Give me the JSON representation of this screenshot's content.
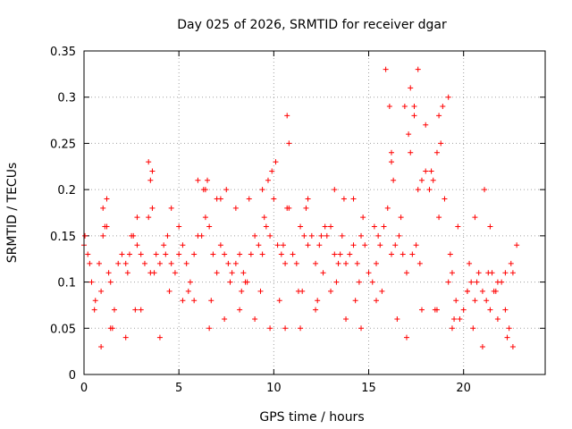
{
  "chart_data": {
    "type": "scatter",
    "title": "Day 025 of 2026, SRMTID for receiver dgar",
    "xlabel": "GPS time / hours",
    "ylabel": "SRMTID / TECUs",
    "xlim": [
      0,
      24.3
    ],
    "ylim": [
      0,
      0.35
    ],
    "x_ticks": [
      0,
      5,
      10,
      15,
      20
    ],
    "x_tick_labels": [
      "0",
      "5",
      "10",
      "15",
      "20"
    ],
    "y_ticks": [
      0,
      0.05,
      0.1,
      0.15,
      0.2,
      0.25,
      0.3,
      0.35
    ],
    "y_tick_labels": [
      "0",
      "0.05",
      "0.1",
      "0.15",
      "0.2",
      "0.25",
      "0.3",
      "0.35"
    ],
    "grid": true,
    "legend": "none",
    "marker": "+",
    "series": [
      {
        "name": "SRMTID",
        "color": "#ff0000",
        "x": [
          0.0,
          0.2,
          0.4,
          0.6,
          0.8,
          1.0,
          1.2,
          1.4,
          1.6,
          1.8,
          2.0,
          2.2,
          2.4,
          2.6,
          2.8,
          3.0,
          3.2,
          3.4,
          3.6,
          3.8,
          4.0,
          4.2,
          4.4,
          4.6,
          4.8,
          5.0,
          5.2,
          5.4,
          5.6,
          5.8,
          6.0,
          6.2,
          6.4,
          6.6,
          6.8,
          7.0,
          7.2,
          7.4,
          7.6,
          7.8,
          8.0,
          8.2,
          8.4,
          8.6,
          8.8,
          9.0,
          9.2,
          9.4,
          9.6,
          9.8,
          10.0,
          10.2,
          10.4,
          10.6,
          10.8,
          11.0,
          11.2,
          11.4,
          11.6,
          11.8,
          12.0,
          12.2,
          12.4,
          12.6,
          12.8,
          13.0,
          13.2,
          13.4,
          13.6,
          13.8,
          14.0,
          14.2,
          14.4,
          14.6,
          14.8,
          15.0,
          15.2,
          15.4,
          15.6,
          15.8,
          16.0,
          16.2,
          16.4,
          16.6,
          16.8,
          17.0,
          17.2,
          17.4,
          17.6,
          17.8,
          18.0,
          18.2,
          18.4,
          18.6,
          18.8,
          19.0,
          19.2,
          19.4,
          19.6,
          19.8,
          20.0,
          20.2,
          20.4,
          20.6,
          20.8,
          21.0,
          21.2,
          21.4,
          21.6,
          21.8,
          22.0,
          22.2,
          22.4,
          22.6,
          22.8,
          0.05,
          0.3,
          0.55,
          0.9,
          1.1,
          1.3,
          1.5,
          2.3,
          2.7,
          3.5,
          3.7,
          4.3,
          4.5,
          5.5,
          6.3,
          6.7,
          7.2,
          7.7,
          8.3,
          8.7,
          9.3,
          9.7,
          10.3,
          10.7,
          11.3,
          11.7,
          12.3,
          12.7,
          13.3,
          13.7,
          14.3,
          14.7,
          15.3,
          15.7,
          16.3,
          16.7,
          17.3,
          17.7,
          18.3,
          18.7,
          19.3,
          19.7,
          20.3,
          20.7,
          21.3,
          21.7,
          22.3,
          1.0,
          2.5,
          3.5,
          5.0,
          6.5,
          7.5,
          8.5,
          9.5,
          10.5,
          11.5,
          12.5,
          13.5,
          14.5,
          15.5,
          16.5,
          17.5,
          18.5,
          19.5,
          20.5,
          21.5,
          22.5,
          3.4,
          3.6,
          6.0,
          6.4,
          9.9,
          10.1,
          10.7,
          10.8,
          15.9,
          16.2,
          16.9,
          17.1,
          17.4,
          17.6,
          18.7,
          18.9,
          21.1,
          0.9,
          1.4,
          2.2,
          3.0,
          4.0,
          5.2,
          5.8,
          6.6,
          7.4,
          8.2,
          9.0,
          9.8,
          10.6,
          11.4,
          12.2,
          13.0,
          13.8,
          14.6,
          15.4,
          16.2,
          17.0,
          17.8,
          18.6,
          19.4,
          20.2,
          21.0,
          21.8,
          22.6,
          1.2,
          2.8,
          4.6,
          7.0,
          8.0,
          9.4,
          11.8,
          13.2,
          14.2,
          16.1,
          17.2,
          18.0,
          19.2,
          20.6,
          21.4,
          22.2
        ],
        "y": [
          0.14,
          0.13,
          0.1,
          0.08,
          0.12,
          0.15,
          0.16,
          0.1,
          0.07,
          0.12,
          0.13,
          0.12,
          0.13,
          0.15,
          0.14,
          0.13,
          0.12,
          0.17,
          0.18,
          0.13,
          0.12,
          0.14,
          0.15,
          0.12,
          0.11,
          0.13,
          0.14,
          0.12,
          0.1,
          0.13,
          0.15,
          0.15,
          0.17,
          0.16,
          0.13,
          0.11,
          0.14,
          0.13,
          0.12,
          0.11,
          0.12,
          0.13,
          0.11,
          0.1,
          0.13,
          0.15,
          0.14,
          0.13,
          0.16,
          0.15,
          0.19,
          0.14,
          0.13,
          0.12,
          0.18,
          0.13,
          0.12,
          0.16,
          0.15,
          0.14,
          0.15,
          0.12,
          0.14,
          0.11,
          0.15,
          0.16,
          0.13,
          0.12,
          0.15,
          0.12,
          0.13,
          0.14,
          0.12,
          0.15,
          0.14,
          0.11,
          0.1,
          0.12,
          0.14,
          0.16,
          0.18,
          0.24,
          0.14,
          0.15,
          0.13,
          0.11,
          0.24,
          0.29,
          0.2,
          0.21,
          0.22,
          0.2,
          0.21,
          0.24,
          0.25,
          0.19,
          0.1,
          0.11,
          0.08,
          0.06,
          0.07,
          0.09,
          0.1,
          0.08,
          0.11,
          0.09,
          0.08,
          0.07,
          0.09,
          0.1,
          0.1,
          0.07,
          0.05,
          0.11,
          0.14,
          0.15,
          0.12,
          0.07,
          0.09,
          0.16,
          0.11,
          0.05,
          0.11,
          0.07,
          0.21,
          0.11,
          0.13,
          0.09,
          0.09,
          0.2,
          0.08,
          0.19,
          0.1,
          0.09,
          0.19,
          0.09,
          0.21,
          0.08,
          0.18,
          0.09,
          0.18,
          0.08,
          0.16,
          0.1,
          0.19,
          0.08,
          0.17,
          0.16,
          0.09,
          0.21,
          0.17,
          0.13,
          0.12,
          0.22,
          0.17,
          0.13,
          0.16,
          0.12,
          0.1,
          0.11,
          0.09,
          0.04,
          0.18,
          0.15,
          0.11,
          0.16,
          0.21,
          0.2,
          0.1,
          0.17,
          0.14,
          0.09,
          0.15,
          0.13,
          0.1,
          0.15,
          0.06,
          0.14,
          0.07,
          0.06,
          0.05,
          0.11,
          0.12,
          0.23,
          0.22,
          0.21,
          0.2,
          0.22,
          0.23,
          0.28,
          0.25,
          0.33,
          0.23,
          0.29,
          0.26,
          0.28,
          0.33,
          0.28,
          0.29,
          0.2,
          0.03,
          0.05,
          0.04,
          0.07,
          0.04,
          0.08,
          0.08,
          0.05,
          0.06,
          0.07,
          0.06,
          0.05,
          0.05,
          0.05,
          0.07,
          0.09,
          0.06,
          0.05,
          0.08,
          0.13,
          0.04,
          0.07,
          0.07,
          0.05,
          0.09,
          0.03,
          0.06,
          0.03,
          0.19,
          0.17,
          0.18,
          0.19,
          0.18,
          0.2,
          0.19,
          0.2,
          0.19,
          0.29,
          0.31,
          0.27,
          0.3,
          0.17,
          0.16,
          0.11
        ]
      }
    ]
  }
}
